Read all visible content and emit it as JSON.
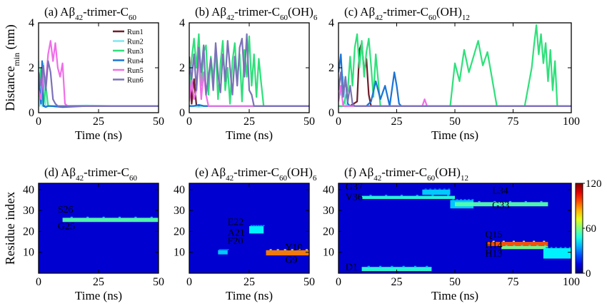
{
  "figure": {
    "panel_titles": [
      {
        "label": "(a) A",
        "beta": "β",
        "sub": "42",
        "rest": "-trimer-C",
        "sub2": "60",
        "tail": "",
        "tail_sub": ""
      },
      {
        "label": "(b) A",
        "beta": "β",
        "sub": "42",
        "rest": "-trimer-C",
        "sub2": "60",
        "tail": "(OH)",
        "tail_sub": "6"
      },
      {
        "label": "(c) A",
        "beta": "β",
        "sub": "42",
        "rest": "-trimer-C",
        "sub2": "60",
        "tail": "(OH)",
        "tail_sub": "12"
      },
      {
        "label": "(d) A",
        "beta": "β",
        "sub": "42",
        "rest": "-trimer-C",
        "sub2": "60",
        "tail": "",
        "tail_sub": ""
      },
      {
        "label": "(e) A",
        "beta": "β",
        "sub": "42",
        "rest": "-trimer-C",
        "sub2": "60",
        "tail": "(OH)",
        "tail_sub": "6"
      },
      {
        "label": "(f) A",
        "beta": "β",
        "sub": "42",
        "rest": "-trimer-C",
        "sub2": "60",
        "tail": "(OH)",
        "tail_sub": "12"
      }
    ],
    "top_ylabel": "Distance",
    "top_ylabel_sub": "min",
    "top_ylabel_unit": " (nm)",
    "bottom_ylabel": "Residue index",
    "xlabel": "Time (ns)",
    "colorbar_ticks": [
      "120",
      "60",
      "0"
    ]
  },
  "chart_data": [
    {
      "type": "line",
      "panel": "a",
      "xlim": [
        0,
        50
      ],
      "ylim": [
        0,
        4
      ],
      "xticks": [
        "0",
        "25",
        "50"
      ],
      "yticks": [
        "0",
        "2",
        "4"
      ],
      "xlabel": "Time (ns)",
      "ylabel": "Distance_min (nm)",
      "legend": "top-right",
      "series": [
        {
          "name": "Run1",
          "color": "#6e1e2a",
          "x": [
            0,
            0.5,
            1,
            2,
            3,
            4,
            5,
            8,
            15,
            25,
            35,
            50
          ],
          "y": [
            1.6,
            0.4,
            1.8,
            0.3,
            0.3,
            0.3,
            0.3,
            0.28,
            0.3,
            0.3,
            0.3,
            0.3
          ]
        },
        {
          "name": "Run2",
          "color": "#7fe8ef",
          "x": [
            0,
            0.5,
            1,
            1.5,
            2,
            3,
            5,
            10,
            20,
            30,
            40,
            50
          ],
          "y": [
            2.3,
            0.3,
            1.9,
            0.3,
            2.2,
            0.3,
            0.3,
            0.3,
            0.32,
            0.3,
            0.3,
            0.3
          ]
        },
        {
          "name": "Run3",
          "color": "#2ee07a",
          "x": [
            0,
            1,
            2,
            3,
            4,
            5,
            7,
            10,
            20,
            30,
            40,
            50
          ],
          "y": [
            0.7,
            2.0,
            0.3,
            1.2,
            0.3,
            0.3,
            0.3,
            0.3,
            0.3,
            0.3,
            0.3,
            0.3
          ]
        },
        {
          "name": "Run4",
          "color": "#1a74d6",
          "x": [
            0,
            1,
            1.5,
            2,
            3,
            4,
            5,
            10,
            20,
            30,
            40,
            50
          ],
          "y": [
            1.5,
            0.4,
            2.3,
            0.3,
            0.25,
            0.3,
            0.3,
            0.25,
            0.3,
            0.3,
            0.3,
            0.3
          ]
        },
        {
          "name": "Run5",
          "color": "#f06ee8",
          "x": [
            0,
            1,
            2,
            3,
            4,
            5,
            6,
            7,
            8,
            9,
            10,
            11,
            12,
            15,
            25,
            35,
            50
          ],
          "y": [
            1.0,
            0.6,
            1.9,
            1.3,
            2.6,
            3.2,
            2.3,
            3.1,
            2.0,
            1.6,
            2.2,
            0.4,
            0.3,
            0.3,
            0.3,
            0.3,
            0.3
          ]
        },
        {
          "name": "Run6",
          "color": "#7b72b8",
          "x": [
            0,
            1,
            2,
            3,
            4,
            5,
            6,
            7,
            8,
            10,
            15,
            25,
            35,
            50
          ],
          "y": [
            1.8,
            1.2,
            2.1,
            1.0,
            2.3,
            1.8,
            0.6,
            0.4,
            0.3,
            0.3,
            0.3,
            0.3,
            0.3,
            0.3
          ]
        }
      ]
    },
    {
      "type": "line",
      "panel": "b",
      "xlim": [
        0,
        50
      ],
      "ylim": [
        0,
        4
      ],
      "xticks": [
        "0",
        "25",
        "50"
      ],
      "yticks": [
        "0",
        "2",
        "4"
      ],
      "xlabel": "Time (ns)",
      "series": [
        {
          "name": "Run1",
          "color": "#6e1e2a",
          "x": [
            0,
            1,
            2,
            3,
            4,
            6,
            10,
            20,
            30,
            40,
            50
          ],
          "y": [
            2.5,
            0.4,
            1.5,
            0.3,
            0.3,
            0.3,
            0.3,
            0.3,
            0.3,
            0.3,
            0.3
          ]
        },
        {
          "name": "Run2",
          "color": "#7fe8ef",
          "x": [
            0,
            2,
            4,
            6,
            10,
            20,
            30,
            40,
            50
          ],
          "y": [
            0.3,
            0.3,
            0.25,
            0.3,
            0.3,
            0.3,
            0.3,
            0.3,
            0.3
          ]
        },
        {
          "name": "Run3",
          "color": "#2ee07a",
          "x": [
            0,
            1,
            2,
            3,
            4,
            5,
            6,
            7,
            8,
            9,
            10,
            11,
            12,
            13,
            14,
            15,
            16,
            17,
            18,
            19,
            20,
            21,
            22,
            23,
            24,
            25,
            26,
            27,
            28,
            29,
            30,
            31,
            32,
            40,
            50
          ],
          "y": [
            1.0,
            2.4,
            3.3,
            2.0,
            3.5,
            1.2,
            2.7,
            3.0,
            0.8,
            2.5,
            1.5,
            2.8,
            0.6,
            2.2,
            3.2,
            1.0,
            2.0,
            0.4,
            2.3,
            3.1,
            1.4,
            2.6,
            0.5,
            2.8,
            1.6,
            3.4,
            1.2,
            2.6,
            0.7,
            2.4,
            1.3,
            0.3,
            0.3,
            0.3,
            0.3
          ]
        },
        {
          "name": "Run4",
          "color": "#1a74d6",
          "x": [
            0,
            2,
            4,
            6,
            8,
            10,
            12,
            15,
            20,
            30,
            50
          ],
          "y": [
            0.3,
            0.3,
            0.35,
            0.3,
            0.3,
            0.3,
            0.3,
            0.3,
            0.3,
            0.3,
            0.3
          ]
        },
        {
          "name": "Run5",
          "color": "#f06ee8",
          "x": [
            0,
            1,
            2,
            3,
            4,
            5,
            6,
            7,
            8,
            10,
            15,
            20,
            30,
            50
          ],
          "y": [
            0.5,
            1.5,
            0.6,
            1.0,
            2.6,
            0.6,
            1.8,
            0.8,
            0.3,
            0.3,
            0.3,
            0.3,
            0.3,
            0.3
          ]
        },
        {
          "name": "Run6",
          "color": "#7b72b8",
          "x": [
            0,
            1,
            2,
            3,
            4,
            5,
            6,
            7,
            8,
            9,
            10,
            11,
            12,
            13,
            14,
            15,
            16,
            17,
            18,
            19,
            20,
            21,
            22,
            23,
            24,
            25,
            26,
            27,
            28,
            30,
            35,
            50
          ],
          "y": [
            2.2,
            1.5,
            2.6,
            1.0,
            2.9,
            1.8,
            3.0,
            0.8,
            1.6,
            2.4,
            1.0,
            3.1,
            1.7,
            0.9,
            2.6,
            1.4,
            3.2,
            2.0,
            0.8,
            2.5,
            1.2,
            2.9,
            3.3,
            1.6,
            3.5,
            1.0,
            0.8,
            0.3,
            0.3,
            0.3,
            0.3,
            0.3
          ]
        }
      ]
    },
    {
      "type": "line",
      "panel": "c",
      "xlim": [
        0,
        100
      ],
      "ylim": [
        0,
        4
      ],
      "xticks": [
        "0",
        "25",
        "50",
        "75",
        "100"
      ],
      "yticks": [
        "0",
        "2",
        "4"
      ],
      "xlabel": "Time (ns)",
      "series": [
        {
          "name": "Run1",
          "color": "#6e1e2a",
          "x": [
            0,
            5,
            8,
            9,
            10,
            11,
            12,
            13,
            14,
            15,
            20,
            50,
            100
          ],
          "y": [
            0.3,
            0.3,
            0.5,
            2.8,
            3.1,
            1.8,
            2.4,
            0.8,
            0.3,
            0.3,
            0.3,
            0.3,
            0.3
          ]
        },
        {
          "name": "Run2",
          "color": "#7fe8ef",
          "x": [
            0,
            1,
            2,
            3,
            4,
            5,
            10,
            50,
            100
          ],
          "y": [
            1.5,
            0.8,
            1.6,
            0.4,
            0.3,
            0.3,
            0.3,
            0.3,
            0.3
          ]
        },
        {
          "name": "Run3",
          "color": "#2ee07a",
          "x": [
            0,
            2,
            4,
            5,
            6,
            7,
            8,
            9,
            10,
            11,
            12,
            13,
            14,
            15,
            16,
            17,
            18,
            20,
            30,
            48,
            50,
            52,
            54,
            56,
            58,
            60,
            62,
            64,
            66,
            68,
            70,
            80,
            83,
            84,
            85,
            86,
            87,
            88,
            89,
            90,
            91,
            92,
            93,
            94,
            95,
            100
          ],
          "y": [
            0.3,
            0.3,
            1.0,
            2.5,
            1.2,
            2.9,
            3.5,
            2.0,
            3.2,
            1.6,
            2.7,
            3.3,
            2.1,
            0.7,
            2.6,
            1.5,
            0.3,
            0.3,
            0.3,
            0.3,
            2.2,
            1.4,
            2.8,
            1.8,
            2.5,
            3.2,
            2.1,
            2.7,
            1.5,
            0.3,
            0.3,
            0.3,
            2.0,
            3.0,
            3.9,
            2.6,
            3.5,
            2.2,
            3.1,
            1.4,
            2.8,
            1.0,
            2.3,
            0.3,
            0.3,
            0.3
          ]
        },
        {
          "name": "Run4",
          "color": "#1a74d6",
          "x": [
            0,
            1,
            2,
            3,
            4,
            5,
            6,
            8,
            10,
            12,
            14,
            16,
            18,
            20,
            22,
            24,
            25,
            26,
            27,
            28,
            30,
            40,
            50,
            100
          ],
          "y": [
            1.8,
            2.6,
            0.8,
            1.5,
            0.4,
            0.3,
            0.3,
            0.3,
            0.3,
            0.3,
            0.5,
            1.4,
            0.6,
            1.2,
            0.3,
            1.8,
            1.2,
            0.4,
            0.3,
            0.3,
            0.3,
            0.3,
            0.3,
            0.3
          ]
        },
        {
          "name": "Run5",
          "color": "#f06ee8",
          "x": [
            0,
            1,
            2,
            4,
            10,
            36,
            37,
            38,
            40,
            60,
            100
          ],
          "y": [
            0.5,
            1.2,
            0.3,
            0.3,
            0.3,
            0.3,
            0.6,
            0.3,
            0.3,
            0.3,
            0.3
          ]
        },
        {
          "name": "Run6",
          "color": "#7b72b8",
          "x": [
            0,
            1,
            2,
            3,
            4,
            5,
            6,
            7,
            8,
            10,
            20,
            100
          ],
          "y": [
            1.0,
            1.8,
            0.7,
            1.6,
            0.5,
            1.2,
            0.4,
            0.3,
            0.3,
            0.3,
            0.3,
            0.3
          ]
        }
      ]
    },
    {
      "type": "heatmap",
      "panel": "d",
      "xlim": [
        0,
        50
      ],
      "ylim": [
        0,
        43
      ],
      "xticks": [
        "0",
        "25",
        "50"
      ],
      "yticks": [
        "10",
        "20",
        "30",
        "40"
      ],
      "xlabel": "Time (ns)",
      "ylabel": "Residue index",
      "annotations": [
        "S26",
        "G25"
      ],
      "contacts": [
        {
          "x0": 10,
          "x1": 50,
          "y0": 24.5,
          "y1": 26.5,
          "level": 55
        }
      ]
    },
    {
      "type": "heatmap",
      "panel": "e",
      "xlim": [
        0,
        50
      ],
      "ylim": [
        0,
        43
      ],
      "xticks": [
        "0",
        "25",
        "50"
      ],
      "yticks": [
        "10",
        "20",
        "30",
        "40"
      ],
      "xlabel": "Time (ns)",
      "annotations": [
        "E22",
        "A21",
        "F20",
        "Y10",
        "G9"
      ],
      "contacts": [
        {
          "x0": 12,
          "x1": 16,
          "y0": 9,
          "y1": 11,
          "level": 40
        },
        {
          "x0": 25,
          "x1": 31,
          "y0": 19,
          "y1": 22.5,
          "level": 45
        },
        {
          "x0": 32,
          "x1": 50,
          "y0": 8.5,
          "y1": 11,
          "level": 90
        }
      ]
    },
    {
      "type": "heatmap",
      "panel": "f",
      "xlim": [
        0,
        100
      ],
      "ylim": [
        0,
        43
      ],
      "xticks": [
        "0",
        "25",
        "50",
        "75",
        "100"
      ],
      "yticks": [
        "10",
        "20",
        "30",
        "40"
      ],
      "xlabel": "Time (ns)",
      "annotations": [
        "G37",
        "V36",
        "L34",
        "G33",
        "Q15",
        "H14",
        "H13",
        "D1"
      ],
      "colorbar": {
        "min": 0,
        "max": 120
      },
      "contacts": [
        {
          "x0": 10,
          "x1": 50,
          "y0": 35.5,
          "y1": 37,
          "level": 50
        },
        {
          "x0": 36,
          "x1": 48,
          "y0": 37.5,
          "y1": 40,
          "level": 40
        },
        {
          "x0": 48,
          "x1": 58,
          "y0": 31,
          "y1": 35,
          "level": 40
        },
        {
          "x0": 50,
          "x1": 90,
          "y0": 32,
          "y1": 34,
          "level": 55
        },
        {
          "x0": 64,
          "x1": 90,
          "y0": 13,
          "y1": 15,
          "level": 95
        },
        {
          "x0": 70,
          "x1": 90,
          "y0": 11.5,
          "y1": 13,
          "level": 60
        },
        {
          "x0": 88,
          "x1": 100,
          "y0": 7,
          "y1": 12,
          "level": 45
        },
        {
          "x0": 10,
          "x1": 40,
          "y0": 1,
          "y1": 3,
          "level": 50
        }
      ]
    }
  ]
}
